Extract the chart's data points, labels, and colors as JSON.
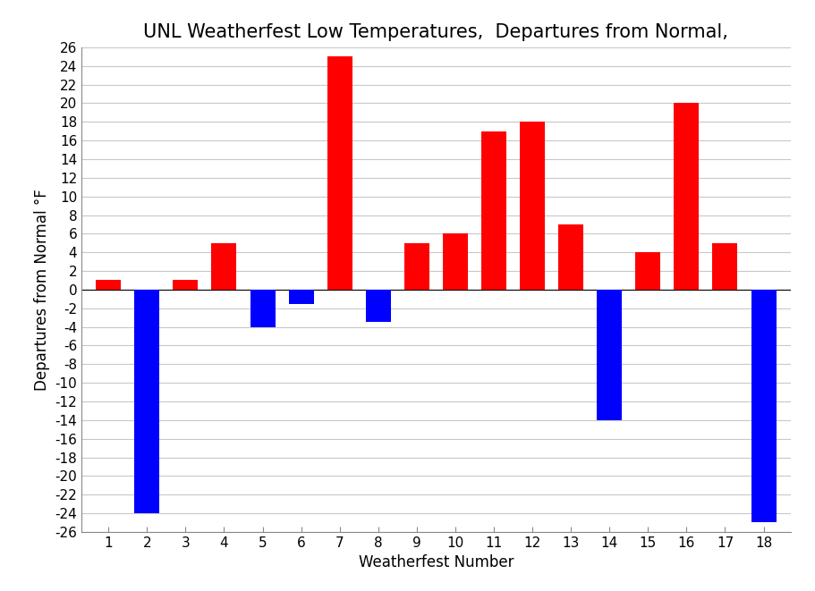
{
  "title_text": "UNL Weatherfest Low Temperatures,  Departures from Normal,",
  "xlabel": "Weatherfest Number",
  "ylabel": "Departures from Normal °F",
  "categories": [
    1,
    2,
    3,
    4,
    5,
    6,
    7,
    8,
    9,
    10,
    11,
    12,
    13,
    14,
    15,
    16,
    17,
    18
  ],
  "values": [
    1,
    -24,
    1,
    5,
    -4,
    -1.5,
    25,
    -3.5,
    5,
    6,
    17,
    18,
    7,
    -14,
    4,
    20,
    5,
    -25
  ],
  "colors": [
    "red",
    "blue",
    "red",
    "red",
    "blue",
    "blue",
    "red",
    "blue",
    "red",
    "red",
    "red",
    "red",
    "red",
    "blue",
    "red",
    "red",
    "red",
    "blue"
  ],
  "ylim": [
    -26,
    26
  ],
  "yticks": [
    -26,
    -24,
    -22,
    -20,
    -18,
    -16,
    -14,
    -12,
    -10,
    -8,
    -6,
    -4,
    -2,
    0,
    2,
    4,
    6,
    8,
    10,
    12,
    14,
    16,
    18,
    20,
    22,
    24,
    26
  ],
  "background_color": "#ffffff",
  "grid_color": "#c8c8c8",
  "bar_width": 0.65,
  "title_fontsize": 15,
  "label_fontsize": 12,
  "tick_fontsize": 11
}
